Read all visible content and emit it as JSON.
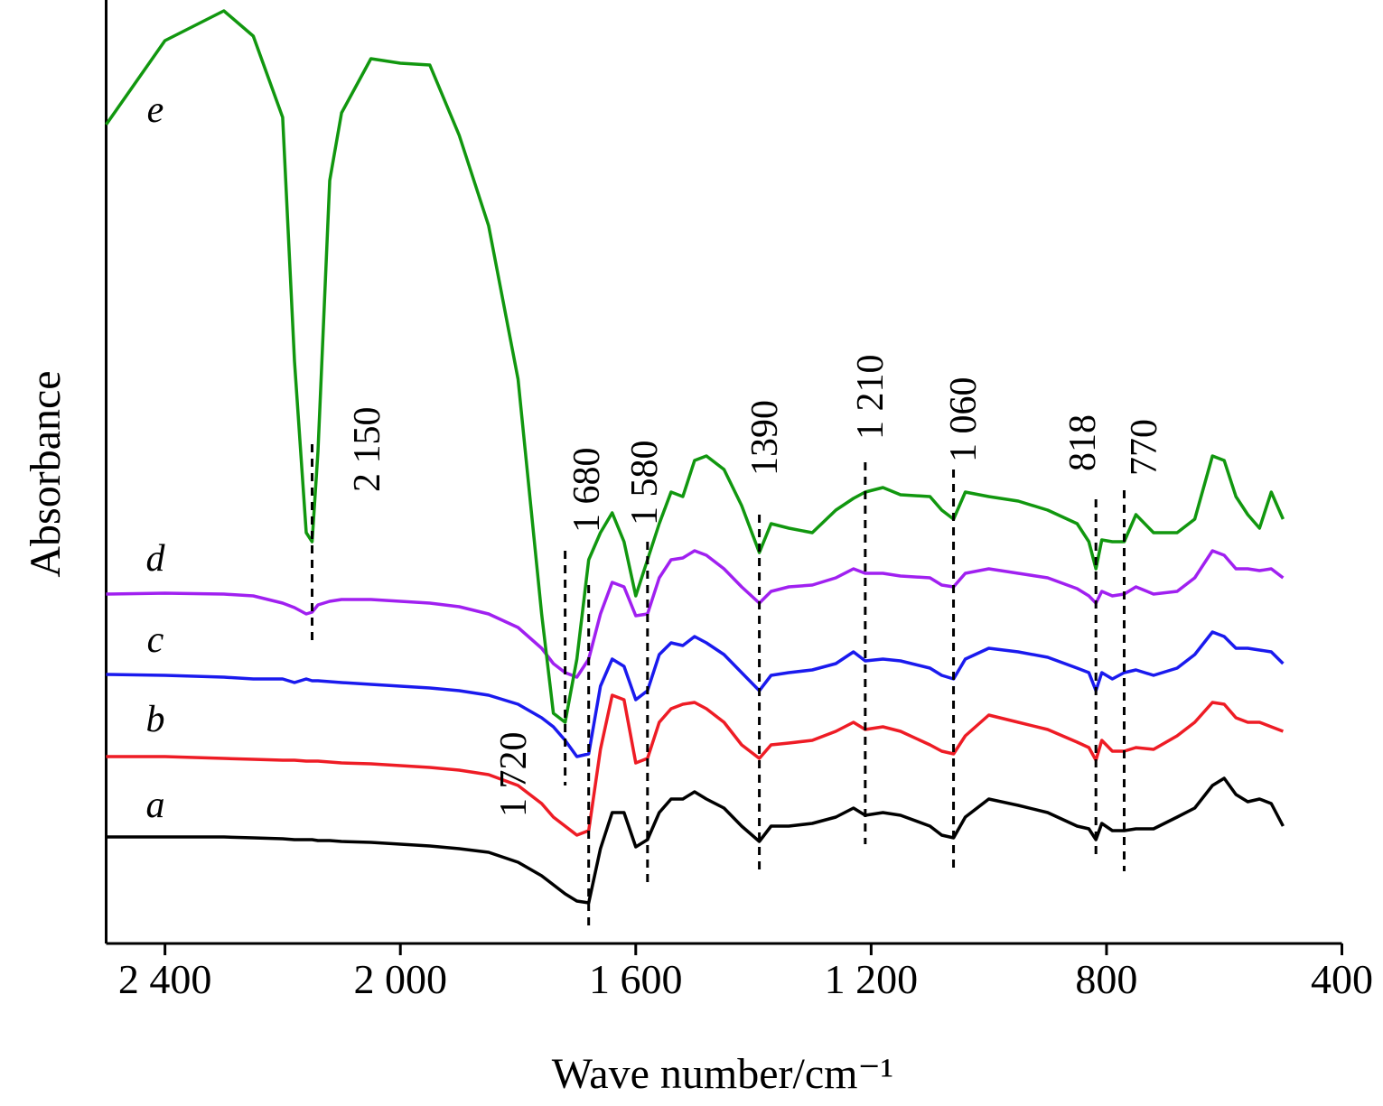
{
  "chart_data": {
    "type": "line",
    "x_label": "Wave number/cm⁻¹",
    "y_label": "Absorbance",
    "xlim": [
      2500,
      400
    ],
    "ylim": [
      0,
      1045
    ],
    "xticks": [
      {
        "value": 2400,
        "label": "2 400"
      },
      {
        "value": 2000,
        "label": "2 000"
      },
      {
        "value": 1600,
        "label": "1 600"
      },
      {
        "value": 1200,
        "label": "1 200"
      },
      800,
      400
    ],
    "x": [
      2500,
      2400,
      2300,
      2250,
      2200,
      2180,
      2160,
      2150,
      2140,
      2120,
      2100,
      2050,
      2000,
      1950,
      1900,
      1850,
      1800,
      1760,
      1740,
      1720,
      1700,
      1680,
      1660,
      1640,
      1620,
      1600,
      1580,
      1560,
      1540,
      1520,
      1500,
      1480,
      1450,
      1420,
      1390,
      1370,
      1340,
      1300,
      1260,
      1230,
      1210,
      1180,
      1150,
      1100,
      1080,
      1060,
      1040,
      1000,
      950,
      900,
      850,
      830,
      818,
      808,
      790,
      770,
      750,
      720,
      680,
      650,
      620,
      600,
      580,
      560,
      540,
      520,
      500
    ],
    "series": [
      {
        "name": "a",
        "color": "#000000",
        "values": [
          118,
          118,
          118,
          117,
          116,
          115,
          115,
          115,
          114,
          114,
          113,
          112,
          110,
          108,
          105,
          101,
          90,
          75,
          65,
          55,
          47,
          45,
          105,
          145,
          145,
          107,
          115,
          145,
          160,
          160,
          168,
          160,
          150,
          130,
          113,
          130,
          130,
          133,
          140,
          150,
          142,
          145,
          142,
          130,
          120,
          117,
          140,
          160,
          153,
          145,
          130,
          127,
          115,
          133,
          125,
          125,
          127,
          127,
          140,
          150,
          175,
          183,
          165,
          157,
          160,
          155,
          130
        ]
      },
      {
        "name": "b",
        "color": "#ee1c25",
        "values": [
          207,
          207,
          205,
          204,
          203,
          203,
          202,
          202,
          202,
          201,
          200,
          199,
          197,
          195,
          192,
          187,
          175,
          155,
          140,
          130,
          120,
          125,
          215,
          275,
          270,
          200,
          205,
          245,
          260,
          265,
          267,
          260,
          245,
          220,
          205,
          220,
          222,
          225,
          235,
          245,
          237,
          240,
          235,
          220,
          213,
          210,
          230,
          253,
          245,
          237,
          223,
          217,
          203,
          225,
          213,
          213,
          217,
          215,
          230,
          245,
          267,
          265,
          250,
          245,
          245,
          240,
          235
        ]
      },
      {
        "name": "c",
        "color": "#1a1aee",
        "values": [
          298,
          297,
          295,
          293,
          293,
          289,
          293,
          291,
          291,
          290,
          289,
          287,
          285,
          283,
          280,
          275,
          265,
          250,
          240,
          225,
          207,
          210,
          285,
          315,
          307,
          270,
          280,
          320,
          333,
          330,
          340,
          333,
          320,
          300,
          280,
          297,
          300,
          303,
          310,
          323,
          313,
          315,
          313,
          305,
          297,
          293,
          315,
          327,
          323,
          317,
          305,
          300,
          280,
          300,
          293,
          300,
          303,
          297,
          305,
          320,
          345,
          340,
          327,
          327,
          325,
          323,
          310
        ]
      },
      {
        "name": "d",
        "color": "#a020f0",
        "values": [
          387,
          388,
          387,
          385,
          377,
          372,
          365,
          367,
          375,
          379,
          381,
          381,
          379,
          377,
          373,
          365,
          350,
          327,
          310,
          300,
          295,
          315,
          365,
          400,
          395,
          363,
          365,
          405,
          425,
          427,
          435,
          430,
          415,
          395,
          377,
          390,
          395,
          397,
          405,
          415,
          410,
          410,
          407,
          405,
          397,
          395,
          410,
          415,
          410,
          405,
          393,
          385,
          377,
          390,
          385,
          387,
          395,
          387,
          390,
          405,
          435,
          430,
          415,
          415,
          413,
          415,
          405
        ]
      },
      {
        "name": "e",
        "color": "#11970f",
        "values": [
          907,
          1000,
          1033,
          1005,
          915,
          645,
          455,
          445,
          545,
          845,
          920,
          980,
          975,
          973,
          895,
          795,
          625,
          365,
          255,
          245,
          315,
          425,
          455,
          477,
          445,
          385,
          425,
          465,
          500,
          495,
          535,
          540,
          525,
          485,
          433,
          465,
          460,
          455,
          480,
          493,
          500,
          505,
          497,
          495,
          480,
          470,
          500,
          495,
          490,
          480,
          465,
          445,
          415,
          447,
          445,
          445,
          475,
          455,
          455,
          470,
          540,
          535,
          495,
          475,
          460,
          500,
          470
        ]
      }
    ],
    "annotations": [
      {
        "x": 2150,
        "label": "2 150",
        "y_range": [
          335,
          553
        ]
      },
      {
        "x": 1720,
        "label": "1 720",
        "y_range": [
          175,
          435
        ]
      },
      {
        "x": 1680,
        "label": "1 680",
        "y_range": [
          20,
          397
        ]
      },
      {
        "x": 1580,
        "label": "1 580",
        "y_range": [
          65,
          445
        ]
      },
      {
        "x": 1390,
        "label": "1390",
        "y_range": [
          75,
          475
        ]
      },
      {
        "x": 1210,
        "label": "1 210",
        "y_range": [
          110,
          533
        ]
      },
      {
        "x": 1060,
        "label": "1 060",
        "y_range": [
          80,
          525
        ]
      },
      {
        "x": 818,
        "label": "818",
        "y_range": [
          95,
          492
        ]
      },
      {
        "x": 770,
        "label": "770",
        "y_range": [
          80,
          502
        ]
      }
    ]
  }
}
